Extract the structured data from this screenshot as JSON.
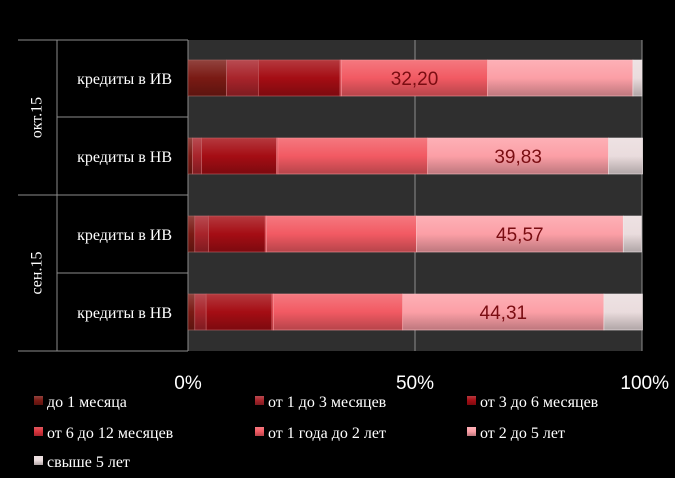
{
  "chart_data": {
    "type": "bar",
    "orientation": "horizontal",
    "stacked": "percent",
    "title": "",
    "xlabel": "",
    "ylabel": "",
    "xlim": [
      0,
      100
    ],
    "x_ticks": [
      "0%",
      "50%",
      "100%"
    ],
    "grid": "vertical lines at 50% and 100%",
    "legend_position": "bottom",
    "groups": [
      {
        "label": "окт.15",
        "categories": [
          "кредиты в ИВ",
          "кредиты в НВ"
        ]
      },
      {
        "label": "сен.15",
        "categories": [
          "кредиты в ИВ",
          "кредиты в НВ"
        ]
      }
    ],
    "categories": [
      "кредиты в ИВ",
      "кредиты в НВ",
      "кредиты в ИВ",
      "кредиты в НВ"
    ],
    "series": [
      {
        "name": "до 1 месяца",
        "color": "#7a1a14",
        "values": [
          8.5,
          1.0,
          1.5,
          1.5
        ]
      },
      {
        "name": "от 1 до 3 месяцев",
        "color": "#a8242b",
        "values": [
          7.0,
          2.0,
          3.0,
          2.5
        ]
      },
      {
        "name": "от 3 до 6 месяцев",
        "color": "#a50d14",
        "values": [
          18.0,
          16.5,
          12.5,
          14.5
        ]
      },
      {
        "name": "от 6 до 12 месяцев",
        "color": "#d9333c",
        "values": [
          0.3,
          0.3,
          0.3,
          0.3
        ]
      },
      {
        "name": "от 1 года до 2 лет",
        "color": "#f25a63",
        "values": [
          32.2,
          33.0,
          33.0,
          28.5
        ]
      },
      {
        "name": "от 2 до 5 лет",
        "color": "#fc9fa6",
        "values": [
          32.0,
          39.83,
          45.57,
          44.31
        ]
      },
      {
        "name": "свыше 5 лет",
        "color": "#eadcdd",
        "values": [
          2.0,
          7.5,
          4.0,
          8.5
        ]
      }
    ],
    "data_labels": [
      {
        "bar": 0,
        "series": 4,
        "text": "32,20"
      },
      {
        "bar": 1,
        "series": 5,
        "text": "39,83"
      },
      {
        "bar": 2,
        "series": 5,
        "text": "45,57"
      },
      {
        "bar": 3,
        "series": 5,
        "text": "44,31"
      }
    ]
  }
}
